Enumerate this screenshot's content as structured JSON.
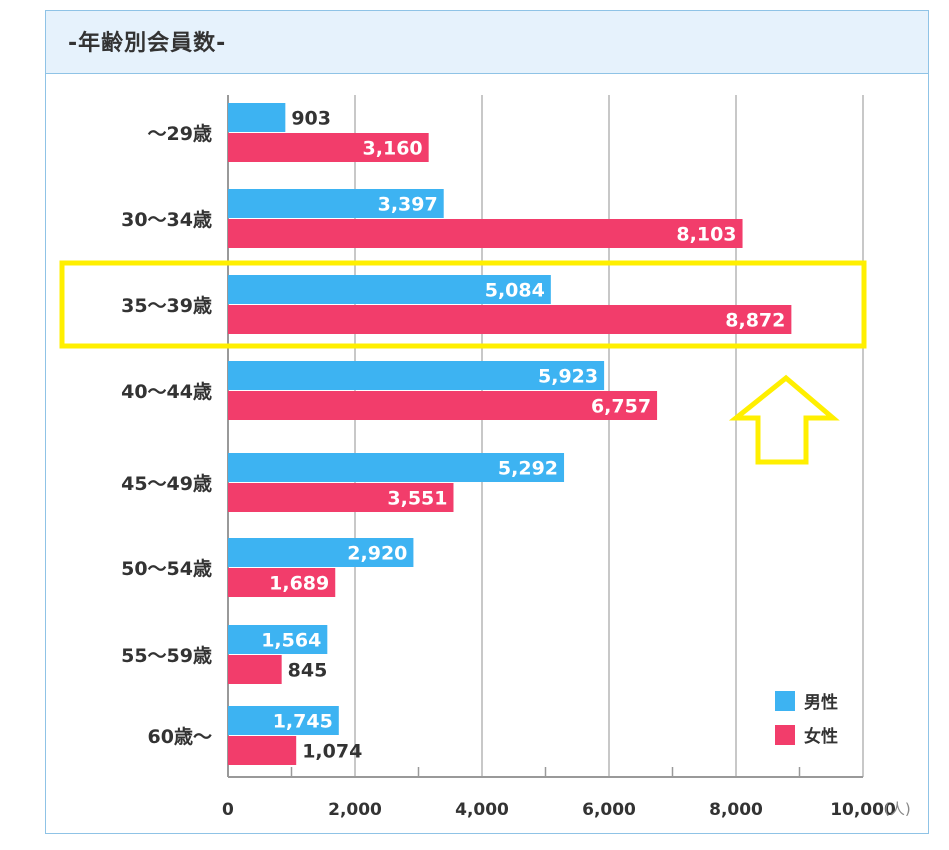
{
  "title": "-年齢別会員数-",
  "chart_data": {
    "type": "bar",
    "orientation": "horizontal",
    "categories": [
      "～29歳",
      "30～34歳",
      "35～39歳",
      "40～44歳",
      "45～49歳",
      "50～54歳",
      "55～59歳",
      "60歳～"
    ],
    "series": [
      {
        "name": "男性",
        "color": "#3db3f2",
        "values": [
          903,
          3397,
          5084,
          5923,
          5292,
          2920,
          1564,
          1745
        ]
      },
      {
        "name": "女性",
        "color": "#f23d6b",
        "values": [
          3160,
          8103,
          8872,
          6757,
          3551,
          1689,
          845,
          1074
        ]
      }
    ],
    "value_labels": [
      [
        "903",
        "3,397",
        "5,084",
        "5,923",
        "5,292",
        "2,920",
        "1,564",
        "1,745"
      ],
      [
        "3,160",
        "8,103",
        "8,872",
        "6,757",
        "3,551",
        "1,689",
        "845",
        "1,074"
      ]
    ],
    "xlim": [
      0,
      10000
    ],
    "xticks": [
      0,
      2000,
      4000,
      6000,
      8000,
      10000
    ],
    "xtick_labels": [
      "0",
      "2,000",
      "4,000",
      "6,000",
      "8,000",
      "10,000"
    ],
    "x_unit": "(人)",
    "grid": true,
    "legend_position": "bottom-right",
    "highlight": {
      "category": "35～39歳",
      "color": "#ffef00",
      "arrow": "up"
    }
  }
}
